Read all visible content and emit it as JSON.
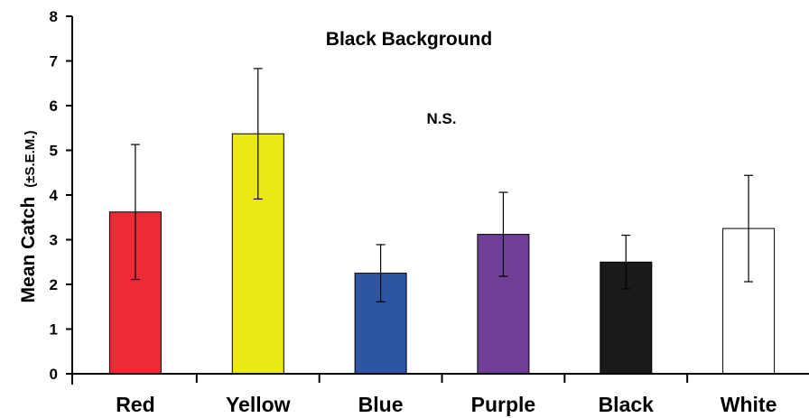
{
  "chart_data": {
    "type": "bar",
    "title": "Black Background",
    "annotation": "N.S.",
    "ylabel_main": "Mean Catch",
    "ylabel_sub": "(±S.E.M.)",
    "xlabel": "",
    "ylim": [
      0,
      8
    ],
    "yticks": [
      "0",
      "1",
      "2",
      "3",
      "4",
      "5",
      "6",
      "7",
      "8"
    ],
    "categories": [
      "Red",
      "Yellow",
      "Blue",
      "Purple",
      "Black",
      "White"
    ],
    "values": [
      3.62,
      5.37,
      2.25,
      3.12,
      2.5,
      3.25
    ],
    "errors": [
      1.51,
      1.46,
      0.64,
      0.94,
      0.6,
      1.19
    ],
    "colors": [
      "#ec2b36",
      "#ece815",
      "#2e55a4",
      "#6f3f97",
      "#1b1a1b",
      "#ffffff"
    ],
    "grid": false,
    "legend": "none"
  }
}
